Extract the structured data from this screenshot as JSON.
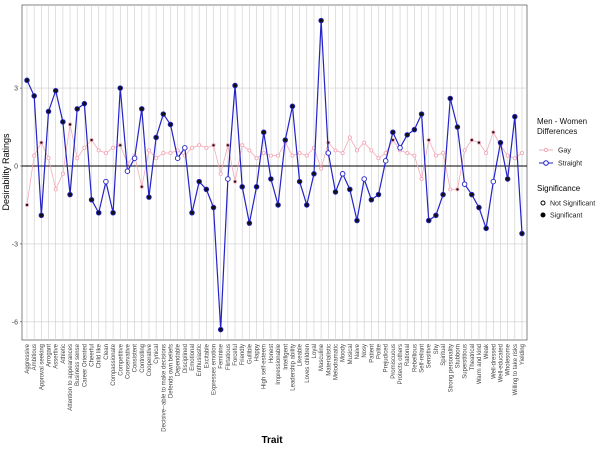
{
  "chart_data": {
    "type": "line",
    "x_label": "Trait",
    "y_label": "Desirability Ratings",
    "legend_title": "Men - Women Differences",
    "significance_title": "Significance",
    "significance_labels": [
      "Not Significant",
      "Significant"
    ],
    "categories": [
      "Aggressive",
      "Ambitious",
      "Approval seeking",
      "Arrogant",
      "Assertive",
      "Athletic",
      "Attention to appearances",
      "Business sense",
      "Career Oriented",
      "Cheerful",
      "Child like",
      "Clean",
      "Compassionate",
      "Competitive",
      "Conservative",
      "Consistent",
      "Controlling",
      "Cooperative",
      "Cynical",
      "Decisive--able to make decisions",
      "Defends own beliefs",
      "Dependable",
      "Disciplined",
      "Emotional",
      "Enthusiastic",
      "Excitable",
      "Expresses emotion",
      "Feminine",
      "Flirtatious",
      "Forceful",
      "Friendly",
      "Gullible",
      "Happy",
      "High self-esteem",
      "Honest",
      "Impressionable",
      "Intelligent",
      "Leadership ability",
      "Likeable",
      "Loves children",
      "Loyal",
      "Masculine",
      "Materialistic",
      "Melodramatic",
      "Moody",
      "Musical",
      "Naive",
      "Nosy",
      "Patient",
      "Polite",
      "Prejudiced",
      "Promiscuous",
      "Protects others",
      "Rational",
      "Rebellious",
      "Self-reliant",
      "Sensitive",
      "Shy",
      "Spiritual",
      "Strong personality",
      "Stubborn",
      "Superstitious",
      "Theatrical",
      "Warm and kind",
      "Weak",
      "Well-dressed",
      "Well-educated",
      "Wholesome",
      "Willing to take risks",
      "Yielding"
    ],
    "series": [
      {
        "name": "Gay",
        "color": "#f4a9b8",
        "values": [
          -1.5,
          0.4,
          0.9,
          0.3,
          -0.9,
          -0.3,
          1.6,
          0.3,
          0.7,
          1.0,
          0.6,
          0.5,
          0.7,
          0.8,
          0.1,
          0.4,
          -0.8,
          0.6,
          0.3,
          0.5,
          0.5,
          0.6,
          0.4,
          0.7,
          0.8,
          0.7,
          0.8,
          -0.3,
          0.8,
          -0.6,
          0.8,
          0.6,
          0.3,
          0.5,
          0.4,
          0.4,
          0.9,
          0.4,
          0.5,
          0.4,
          0.7,
          -0.1,
          0.9,
          0.6,
          0.5,
          1.1,
          0.6,
          0.9,
          0.6,
          0.3,
          0.5,
          1.0,
          0.6,
          0.5,
          0.4,
          -0.5,
          1.0,
          0.4,
          0.5,
          -0.9,
          -0.9,
          0.6,
          1.0,
          0.9,
          0.5,
          1.3,
          0.8,
          0.4,
          0.3,
          0.5
        ],
        "significant": [
          true,
          false,
          true,
          false,
          false,
          false,
          true,
          false,
          false,
          true,
          false,
          false,
          false,
          true,
          false,
          false,
          true,
          false,
          false,
          false,
          false,
          false,
          false,
          false,
          false,
          false,
          true,
          false,
          true,
          true,
          false,
          false,
          false,
          false,
          false,
          false,
          false,
          false,
          false,
          false,
          false,
          false,
          true,
          false,
          false,
          false,
          false,
          false,
          false,
          false,
          false,
          true,
          false,
          false,
          false,
          false,
          true,
          false,
          false,
          false,
          true,
          false,
          true,
          true,
          false,
          true,
          false,
          false,
          false,
          false
        ]
      },
      {
        "name": "Straight",
        "color": "#2323c8",
        "values": [
          3.3,
          2.7,
          -1.9,
          2.1,
          2.9,
          1.7,
          -1.1,
          2.2,
          2.4,
          -1.3,
          -1.8,
          -0.6,
          -1.8,
          3.0,
          -0.2,
          0.3,
          2.2,
          -1.2,
          1.1,
          2.0,
          1.6,
          0.3,
          0.7,
          -1.8,
          -0.6,
          -0.9,
          -1.6,
          -6.3,
          -0.5,
          3.1,
          -0.8,
          -2.2,
          -0.8,
          1.3,
          -0.5,
          -1.5,
          1.0,
          2.3,
          -0.6,
          -1.5,
          -0.3,
          5.6,
          0.5,
          -1.0,
          -0.3,
          -0.9,
          -2.1,
          -0.5,
          -1.3,
          -1.1,
          0.2,
          1.3,
          0.7,
          1.2,
          1.4,
          2.0,
          -2.1,
          -1.9,
          -1.1,
          2.6,
          1.5,
          -0.7,
          -1.1,
          -1.6,
          -2.4,
          -0.6,
          0.9,
          -0.5,
          1.9,
          -2.6
        ],
        "significant": [
          true,
          true,
          true,
          true,
          true,
          true,
          true,
          true,
          true,
          true,
          true,
          false,
          true,
          true,
          false,
          false,
          true,
          true,
          true,
          true,
          true,
          false,
          false,
          true,
          true,
          true,
          true,
          true,
          false,
          true,
          true,
          true,
          true,
          true,
          true,
          true,
          true,
          true,
          true,
          true,
          true,
          true,
          false,
          true,
          false,
          true,
          true,
          false,
          true,
          true,
          false,
          true,
          false,
          true,
          true,
          true,
          true,
          true,
          true,
          true,
          true,
          false,
          true,
          true,
          true,
          false,
          true,
          true,
          true,
          true
        ]
      }
    ],
    "ylim": [
      -6.7,
      6.2
    ],
    "yticks": [
      -6,
      -3,
      0,
      3
    ],
    "grid": true
  }
}
